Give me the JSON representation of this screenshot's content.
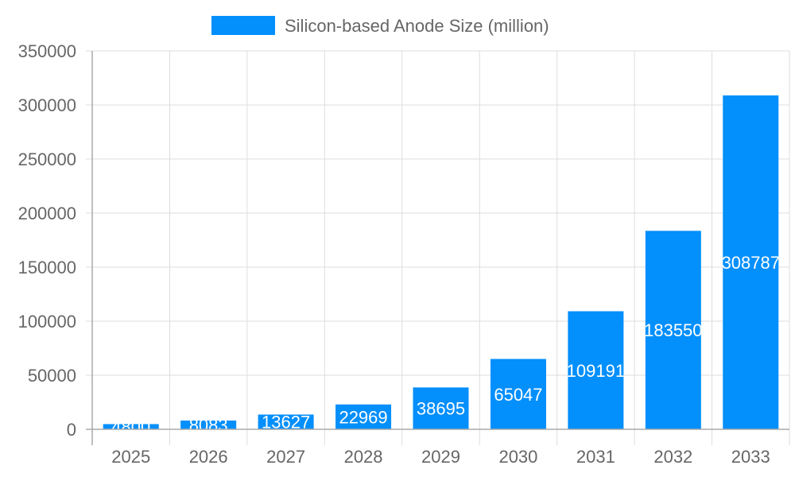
{
  "chart_data": {
    "type": "bar",
    "title": "",
    "xlabel": "",
    "ylabel": "",
    "categories": [
      "2025",
      "2026",
      "2027",
      "2028",
      "2029",
      "2030",
      "2031",
      "2032",
      "2033"
    ],
    "series": [
      {
        "name": "Silicon-based Anode Size (million)",
        "values": [
          4800,
          8083,
          13627,
          22969,
          38695,
          65047,
          109191,
          183550,
          308787
        ],
        "color": "#038ffc"
      }
    ],
    "ylim": [
      0,
      350000
    ],
    "yticks": [
      0,
      50000,
      100000,
      150000,
      200000,
      250000,
      300000,
      350000
    ],
    "grid": true,
    "legend": "top-center",
    "data_labels": "inside-center"
  }
}
